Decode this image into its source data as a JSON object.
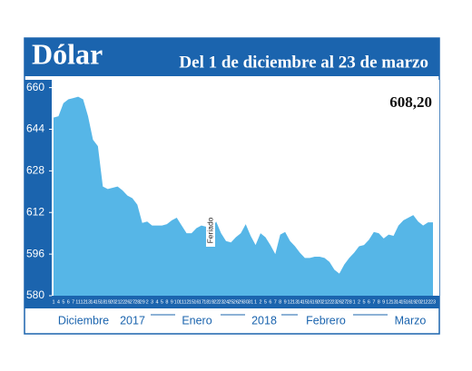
{
  "chart_data": {
    "type": "area",
    "title": "Dólar",
    "subtitle": "Del 1 de diciembre al 23 de marzo",
    "annotations": [
      "608,20",
      "Feriado"
    ],
    "categories": [
      "1",
      "4",
      "5",
      "6",
      "7",
      "11",
      "12",
      "13",
      "14",
      "15",
      "18",
      "19",
      "20",
      "21",
      "22",
      "26",
      "27",
      "28",
      "29",
      "2",
      "3",
      "4",
      "5",
      "8",
      "9",
      "10",
      "11",
      "12",
      "15",
      "16",
      "17",
      "18",
      "19",
      "22",
      "23",
      "24",
      "25",
      "26",
      "29",
      "30",
      "31",
      "1",
      "2",
      "5",
      "6",
      "7",
      "8",
      "9",
      "12",
      "13",
      "14",
      "15",
      "16",
      "19",
      "20",
      "21",
      "22",
      "23",
      "26",
      "27",
      "28",
      "1",
      "2",
      "5",
      "6",
      "7",
      "8",
      "9",
      "12",
      "13",
      "14",
      "15",
      "16",
      "19",
      "20",
      "21",
      "22",
      "23"
    ],
    "month_labels": [
      "Diciembre",
      "2017",
      "Enero",
      "2018",
      "Febrero",
      "Marzo"
    ],
    "values": [
      648.5,
      649,
      654,
      655.5,
      656,
      656.5,
      655.5,
      649,
      640,
      637.5,
      622,
      621,
      621.5,
      622,
      620.5,
      618.5,
      617.5,
      615,
      608,
      608.5,
      607,
      607,
      607,
      607.5,
      609,
      610,
      607,
      604,
      604,
      606,
      607,
      606.5,
      605.5,
      608.5,
      604,
      601,
      600.5,
      602.5,
      604,
      607.5,
      603,
      599.5,
      604,
      602.5,
      599.5,
      596,
      603.5,
      604.5,
      601,
      599,
      596.5,
      594.5,
      594.5,
      595,
      595,
      594.5,
      593,
      590,
      588.5,
      592,
      594.5,
      596.5,
      599,
      599.5,
      601.5,
      604.5,
      604,
      602,
      603.5,
      603,
      607,
      609,
      610,
      611,
      608.5,
      607,
      608.2,
      608.2
    ],
    "color": "#56b6e7",
    "ylim": [
      580,
      663
    ],
    "yticks": [
      580,
      596,
      612,
      628,
      644,
      660
    ]
  }
}
